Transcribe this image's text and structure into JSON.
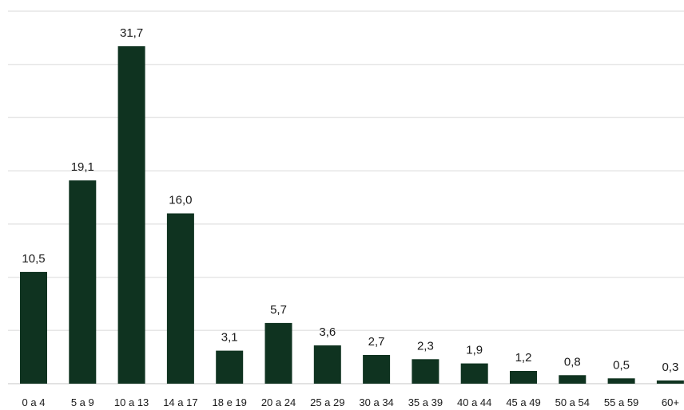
{
  "chart_data": {
    "type": "bar",
    "categories": [
      "0 a 4",
      "5 a 9",
      "10 a 13",
      "14 a 17",
      "18 e 19",
      "20 a 24",
      "25 a 29",
      "30 a 34",
      "35 a 39",
      "40 a 44",
      "45 a 49",
      "50 a 54",
      "55 a 59",
      "60+"
    ],
    "values": [
      10.5,
      19.1,
      31.7,
      16.0,
      3.1,
      5.7,
      3.6,
      2.7,
      2.3,
      1.9,
      1.2,
      0.8,
      0.5,
      0.3
    ],
    "value_labels": [
      "10,5",
      "19,1",
      "31,7",
      "16,0",
      "3,1",
      "5,7",
      "3,6",
      "2,7",
      "2,3",
      "1,9",
      "1,2",
      "0,8",
      "0,5",
      "0,3"
    ],
    "ylim": [
      0,
      35
    ],
    "grid": true,
    "bar_color": "#0f3320",
    "grid_color": "#e6e6e6"
  }
}
